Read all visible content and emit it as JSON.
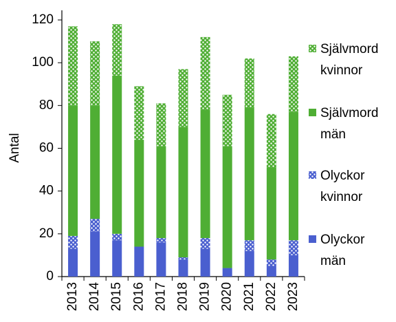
{
  "chart_data": {
    "type": "stacked_bar",
    "ylabel": "Antal",
    "categories": [
      "2013",
      "2014",
      "2015",
      "2016",
      "2017",
      "2018",
      "2019",
      "2020",
      "2021",
      "2022",
      "2023"
    ],
    "series": [
      {
        "name": "Olyckor män",
        "color": "#4a5fcf",
        "pattern": "solid",
        "values": [
          13,
          21,
          17,
          14,
          16,
          8,
          13,
          4,
          12,
          5,
          10
        ]
      },
      {
        "name": "Olyckor kvinnor",
        "color": "#4a5fcf",
        "pattern": "dotted",
        "values": [
          6,
          6,
          3,
          0,
          2,
          1,
          5,
          0,
          5,
          3,
          7
        ]
      },
      {
        "name": "Självmord män",
        "color": "#4fae34",
        "pattern": "solid",
        "values": [
          61,
          53,
          74,
          50,
          43,
          61,
          60,
          57,
          62,
          43,
          60
        ]
      },
      {
        "name": "Självmord kvinnor",
        "color": "#4fae34",
        "pattern": "dotted",
        "values": [
          37,
          30,
          24,
          25,
          20,
          27,
          34,
          24,
          23,
          25,
          26
        ]
      }
    ],
    "ylim": [
      0,
      120
    ],
    "yticks": [
      0,
      20,
      40,
      60,
      80,
      100,
      120
    ],
    "grid": false
  }
}
